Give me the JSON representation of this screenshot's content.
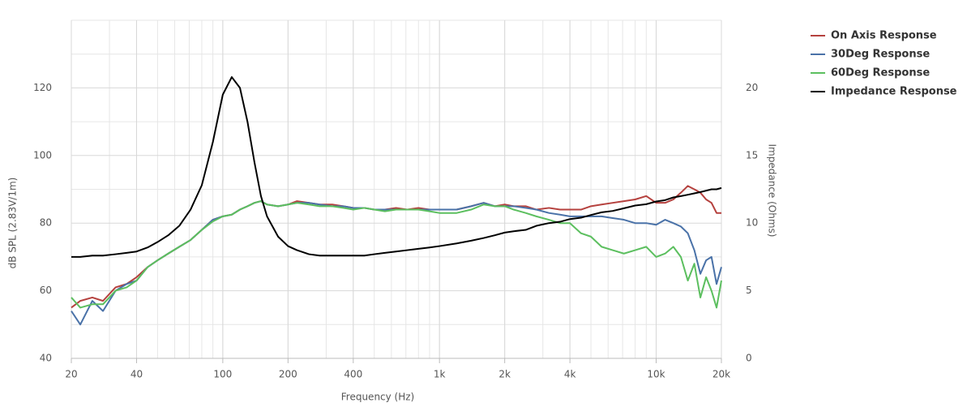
{
  "chart_data": {
    "type": "line",
    "xlabel": "Frequency (Hz)",
    "ylabel": "dB SPL (2.83V/1m)",
    "y2label": "Impedance (Ohms)",
    "xscale": "log",
    "grid": true,
    "legend": "right",
    "xlim": [
      20,
      20000
    ],
    "ylim": [
      40,
      140
    ],
    "y2lim": [
      0,
      25
    ],
    "xticks": [
      20,
      40,
      100,
      200,
      400,
      {
        "value": 1000,
        "label": "1k"
      },
      {
        "value": 2000,
        "label": "2k"
      },
      {
        "value": 4000,
        "label": "4k"
      },
      {
        "value": 10000,
        "label": "10k"
      },
      {
        "value": 20000,
        "label": "20k"
      }
    ],
    "yticks": [
      40,
      60,
      80,
      100,
      120
    ],
    "y2ticks": [
      0,
      5,
      10,
      15,
      20
    ],
    "x": [
      20,
      22,
      25,
      28,
      32,
      36,
      40,
      45,
      50,
      56,
      63,
      71,
      80,
      90,
      100,
      110,
      120,
      130,
      140,
      150,
      160,
      180,
      200,
      220,
      250,
      280,
      320,
      360,
      400,
      450,
      500,
      560,
      630,
      710,
      800,
      900,
      1000,
      1200,
      1400,
      1600,
      1800,
      2000,
      2200,
      2500,
      2800,
      3200,
      3600,
      4000,
      4500,
      5000,
      5600,
      6300,
      7100,
      8000,
      9000,
      10000,
      11000,
      12000,
      13000,
      14000,
      15000,
      16000,
      17000,
      18000,
      19000,
      20000
    ],
    "series": [
      {
        "name": "On Axis Response",
        "color": "#b5413e",
        "values": [
          55,
          57,
          58,
          57,
          61,
          62,
          64,
          67,
          69,
          71,
          73,
          75,
          78,
          81,
          82,
          82.5,
          84,
          85,
          86,
          86.5,
          85.5,
          85,
          85.5,
          86.5,
          86,
          85.5,
          85.5,
          85,
          84.5,
          84.5,
          84,
          84,
          84.5,
          84,
          84.5,
          84,
          84,
          84,
          85,
          86,
          85,
          85.5,
          85,
          85,
          84,
          84.5,
          84,
          84,
          84,
          85,
          85.5,
          86,
          86.5,
          87,
          88,
          86,
          86,
          87,
          89,
          91,
          90,
          89,
          87,
          86,
          83,
          83
        ]
      },
      {
        "name": "30Deg Response",
        "color": "#4a72a8",
        "values": [
          54,
          50,
          57,
          54,
          60,
          62,
          63,
          67,
          69,
          71,
          73,
          75,
          78,
          81,
          82,
          82.5,
          84,
          85,
          86,
          86.5,
          85.5,
          85,
          85.5,
          86,
          86,
          85.5,
          85,
          85,
          84.5,
          84.5,
          84,
          84,
          84,
          84,
          84,
          84,
          84,
          84,
          85,
          86,
          85,
          85,
          85,
          84.5,
          84,
          83,
          82.5,
          82,
          82,
          82,
          82,
          81.5,
          81,
          80,
          80,
          79.5,
          81,
          80,
          79,
          77,
          72,
          65,
          69,
          70,
          62,
          67
        ]
      },
      {
        "name": "60Deg Response",
        "color": "#5cbf5f",
        "values": [
          58,
          55,
          56,
          56,
          60,
          61,
          63,
          67,
          69,
          71,
          73,
          75,
          78,
          80.5,
          82,
          82.5,
          84,
          85,
          86,
          86.5,
          85.5,
          85,
          85.5,
          86,
          85.5,
          85,
          85,
          84.5,
          84,
          84.5,
          84,
          83.5,
          84,
          84,
          84,
          83.5,
          83,
          83,
          84,
          85.5,
          85,
          85,
          84,
          83,
          82,
          81,
          80,
          80,
          77,
          76,
          73,
          72,
          71,
          72,
          73,
          70,
          71,
          73,
          70,
          63,
          68,
          58,
          64,
          60,
          55,
          63
        ]
      },
      {
        "name": "Impedance Response",
        "color": "#000000",
        "axis": "y2",
        "values": [
          7.5,
          7.5,
          7.6,
          7.6,
          7.7,
          7.8,
          7.9,
          8.2,
          8.6,
          9.1,
          9.8,
          11,
          12.8,
          16,
          19.5,
          20.8,
          20,
          17.5,
          14.5,
          12,
          10.5,
          9,
          8.3,
          8,
          7.7,
          7.6,
          7.6,
          7.6,
          7.6,
          7.6,
          7.7,
          7.8,
          7.9,
          8.0,
          8.1,
          8.2,
          8.3,
          8.5,
          8.7,
          8.9,
          9.1,
          9.3,
          9.4,
          9.5,
          9.8,
          10.0,
          10.1,
          10.3,
          10.4,
          10.6,
          10.8,
          10.9,
          11.1,
          11.3,
          11.4,
          11.6,
          11.7,
          11.9,
          12.0,
          12.1,
          12.2,
          12.3,
          12.4,
          12.5,
          12.5,
          12.6
        ]
      }
    ]
  }
}
